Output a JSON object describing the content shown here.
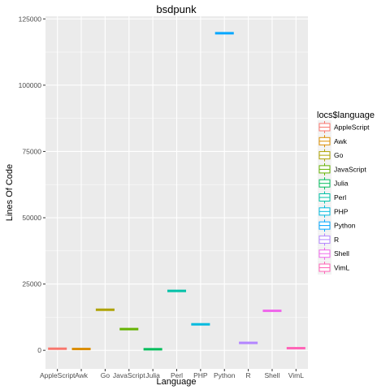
{
  "chart_data": {
    "type": "boxplot",
    "title": "bsdpunk",
    "xlabel": "Language",
    "ylabel": "Lines Of Code",
    "categories": [
      "AppleScript",
      "Awk",
      "Go",
      "JavaScript",
      "Julia",
      "Perl",
      "PHP",
      "Python",
      "R",
      "Shell",
      "VimL"
    ],
    "values": [
      600,
      500,
      15300,
      8000,
      400,
      22400,
      9800,
      119600,
      2800,
      14900,
      800
    ],
    "ylim": [
      -7000,
      126000
    ],
    "yticks": [
      0,
      25000,
      50000,
      75000,
      100000,
      125000
    ],
    "grid": true,
    "legend": {
      "title": "locs$language",
      "position": "right",
      "entries": [
        "AppleScript",
        "Awk",
        "Go",
        "JavaScript",
        "Julia",
        "Perl",
        "PHP",
        "Python",
        "R",
        "Shell",
        "VimL"
      ]
    },
    "colors": [
      "#F8766D",
      "#DB8E00",
      "#AEA200",
      "#64B200",
      "#00BD5C",
      "#00C1A7",
      "#00BADE",
      "#00A6FF",
      "#B385FF",
      "#EF67EB",
      "#FF63B6"
    ],
    "panel_background": "#EBEBEB",
    "grid_color": "#FFFFFF"
  }
}
